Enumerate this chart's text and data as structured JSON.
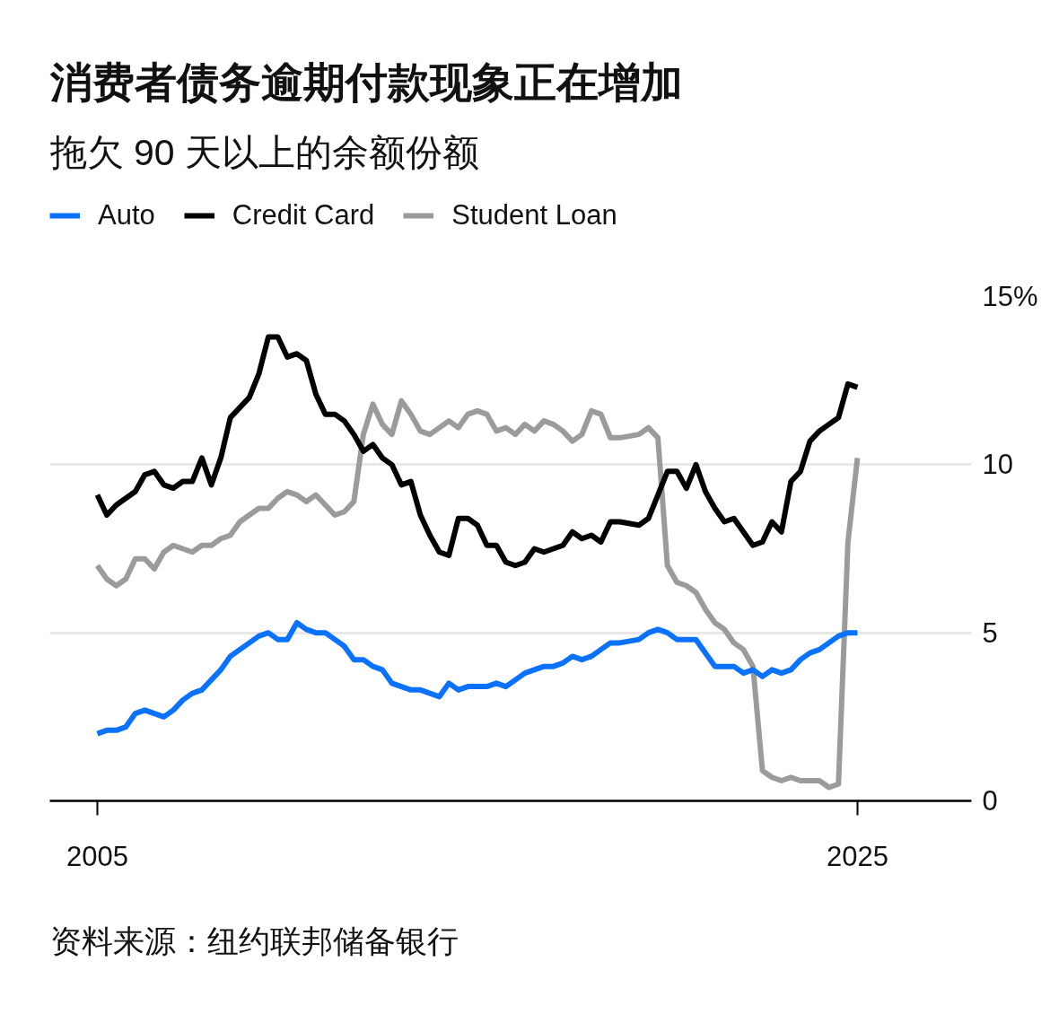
{
  "chart_data": {
    "type": "line",
    "title": "消费者债务逾期付款现象正在增加",
    "subtitle": "拖欠 90 天以上的余额份额",
    "x": [
      2005,
      2005.25,
      2005.5,
      2005.75,
      2006,
      2006.25,
      2006.5,
      2006.75,
      2007,
      2007.25,
      2007.5,
      2007.75,
      2008,
      2008.25,
      2008.5,
      2008.75,
      2009,
      2009.25,
      2009.5,
      2009.75,
      2010,
      2010.25,
      2010.5,
      2010.75,
      2011,
      2011.25,
      2011.5,
      2011.75,
      2012,
      2012.25,
      2012.5,
      2012.75,
      2013,
      2013.25,
      2013.5,
      2013.75,
      2014,
      2014.25,
      2014.5,
      2014.75,
      2015,
      2015.25,
      2015.5,
      2015.75,
      2016,
      2016.25,
      2016.5,
      2016.75,
      2017,
      2017.25,
      2017.5,
      2017.75,
      2018,
      2018.25,
      2018.5,
      2018.75,
      2019.25,
      2019.5,
      2019.75,
      2020,
      2020.25,
      2020.5,
      2020.75,
      2021,
      2021.25,
      2021.5,
      2021.75,
      2022,
      2022.25,
      2022.5,
      2022.75,
      2023,
      2023.25,
      2023.5,
      2023.75,
      2024,
      2024.25,
      2024.5,
      2024.75,
      2025
    ],
    "series": [
      {
        "name": "Auto",
        "color": "#0a72ff",
        "values": [
          2.0,
          2.1,
          2.1,
          2.2,
          2.6,
          2.7,
          2.6,
          2.5,
          2.7,
          3.0,
          3.2,
          3.3,
          3.6,
          3.9,
          4.3,
          4.5,
          4.7,
          4.9,
          5.0,
          4.8,
          4.8,
          5.3,
          5.1,
          5.0,
          5.0,
          4.8,
          4.6,
          4.2,
          4.2,
          4.0,
          3.9,
          3.5,
          3.4,
          3.3,
          3.3,
          3.2,
          3.1,
          3.5,
          3.3,
          3.4,
          3.4,
          3.4,
          3.5,
          3.4,
          3.6,
          3.8,
          3.9,
          4.0,
          4.0,
          4.1,
          4.3,
          4.2,
          4.3,
          4.5,
          4.7,
          4.7,
          4.8,
          5.0,
          5.1,
          5.0,
          4.8,
          4.8,
          4.8,
          4.4,
          4.0,
          4.0,
          4.0,
          3.8,
          3.9,
          3.7,
          3.9,
          3.8,
          3.9,
          4.2,
          4.4,
          4.5,
          4.7,
          4.9,
          5.0,
          5.0
        ]
      },
      {
        "name": "Credit Card",
        "color": "#000000",
        "values": [
          9.1,
          8.5,
          8.8,
          9.0,
          9.2,
          9.7,
          9.8,
          9.4,
          9.3,
          9.5,
          9.5,
          10.2,
          9.4,
          10.2,
          11.4,
          11.7,
          12.0,
          12.7,
          13.8,
          13.8,
          13.2,
          13.3,
          13.1,
          12.1,
          11.5,
          11.5,
          11.3,
          10.9,
          10.4,
          10.6,
          10.2,
          10.0,
          9.4,
          9.5,
          8.5,
          7.9,
          7.4,
          7.3,
          8.4,
          8.4,
          8.2,
          7.6,
          7.6,
          7.1,
          7.0,
          7.1,
          7.5,
          7.4,
          7.5,
          7.6,
          8.0,
          7.8,
          7.9,
          7.7,
          8.3,
          8.3,
          8.2,
          8.4,
          9.1,
          9.8,
          9.8,
          9.3,
          10.0,
          9.2,
          8.7,
          8.3,
          8.4,
          8.0,
          7.6,
          7.7,
          8.3,
          8.0,
          9.5,
          9.8,
          10.7,
          11.0,
          11.2,
          11.4,
          12.4,
          12.3
        ]
      },
      {
        "name": "Student Loan",
        "color": "#9b9b9b",
        "values": [
          7.0,
          6.6,
          6.4,
          6.6,
          7.2,
          7.2,
          6.9,
          7.4,
          7.6,
          7.5,
          7.4,
          7.6,
          7.6,
          7.8,
          7.9,
          8.3,
          8.5,
          8.7,
          8.7,
          9.0,
          9.2,
          9.1,
          8.9,
          9.1,
          8.8,
          8.5,
          8.6,
          8.9,
          10.9,
          11.8,
          11.2,
          10.9,
          11.9,
          11.5,
          11.0,
          10.9,
          11.1,
          11.3,
          11.1,
          11.5,
          11.6,
          11.5,
          11.0,
          11.1,
          10.9,
          11.2,
          11.0,
          11.3,
          11.2,
          11.0,
          10.7,
          10.9,
          11.6,
          11.5,
          10.8,
          10.8,
          10.9,
          11.1,
          10.8,
          7.0,
          6.5,
          6.4,
          6.2,
          5.7,
          5.3,
          5.1,
          4.7,
          4.5,
          4.0,
          0.9,
          0.7,
          0.6,
          0.7,
          0.6,
          0.6,
          0.6,
          0.4,
          0.5,
          7.7,
          10.2
        ]
      }
    ],
    "xlim": [
      2003.75,
      2028
    ],
    "xticks": [
      2005,
      2025
    ],
    "ylim": [
      0,
      15
    ],
    "yticks": [
      0,
      5,
      10,
      {
        "value": 15,
        "label": "15%"
      }
    ],
    "grid": "y",
    "legend": "top left",
    "line_style": "solid",
    "annotations": [
      "资料来源：纽约联邦储备银行"
    ]
  }
}
